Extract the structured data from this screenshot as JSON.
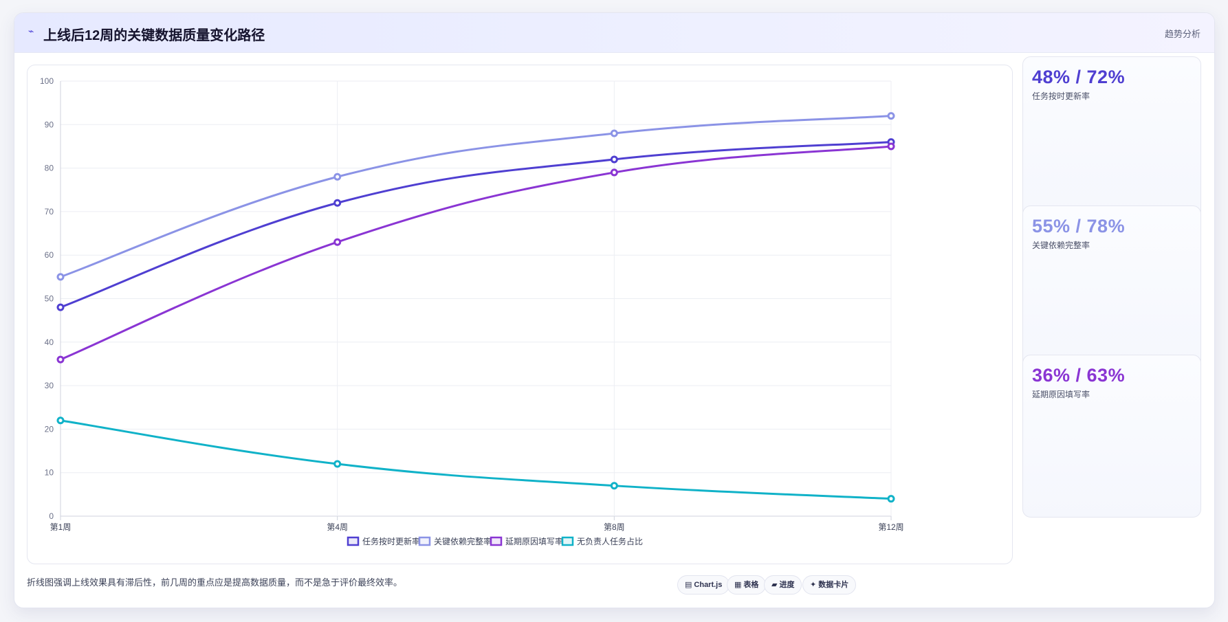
{
  "header": {
    "icon": "⌁",
    "title": "上线后12周的关键数据质量变化路径",
    "tag": "趋势分析"
  },
  "kpis": [
    {
      "value": "48% / 72%",
      "label": "任务按时更新率",
      "color": "#4f3fd1"
    },
    {
      "value": "55% / 78%",
      "label": "关键依赖完整率",
      "color": "#8b93e6"
    },
    {
      "value": "36% / 63%",
      "label": "延期原因填写率",
      "color": "#8a35d3"
    }
  ],
  "footer": {
    "note": "折线图强调上线效果具有滞后性，前几周的重点应是提高数据质量，而不是急于评价最终效率。",
    "chips": [
      {
        "icon": "table-icon",
        "glyph": "▤",
        "label": "Chart.js"
      },
      {
        "icon": "grid-icon",
        "glyph": "▦",
        "label": "表格"
      },
      {
        "icon": "progress-icon",
        "glyph": "▰",
        "label": "进度"
      },
      {
        "icon": "sparkle-icon",
        "glyph": "✦",
        "label": "数据卡片"
      }
    ]
  },
  "chart_data": {
    "type": "line",
    "categories": [
      "第1周",
      "第4周",
      "第8周",
      "第12周"
    ],
    "ylim": [
      0,
      100
    ],
    "yticks": [
      0,
      10,
      20,
      30,
      40,
      50,
      60,
      70,
      80,
      90,
      100
    ],
    "grid": true,
    "legend_position": "bottom",
    "series": [
      {
        "name": "任务按时更新率",
        "color": "#4f3fd1",
        "values": [
          48,
          72,
          82,
          86
        ]
      },
      {
        "name": "关键依赖完整率",
        "color": "#8b93e6",
        "values": [
          55,
          78,
          88,
          92
        ]
      },
      {
        "name": "延期原因填写率",
        "color": "#8a35d3",
        "values": [
          36,
          63,
          79,
          85
        ]
      },
      {
        "name": "无负责人任务占比",
        "color": "#10b2c8",
        "values": [
          22,
          12,
          7,
          4
        ]
      }
    ]
  }
}
